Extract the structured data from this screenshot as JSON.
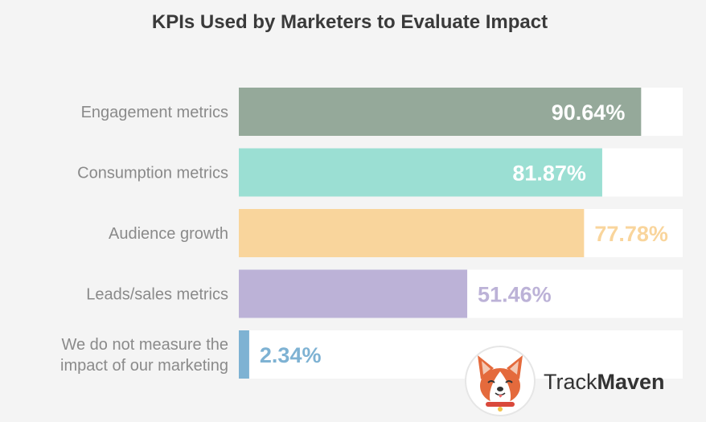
{
  "chart_data": {
    "type": "bar",
    "orientation": "horizontal",
    "title": "KPIs Used by Marketers to Evaluate Impact",
    "categories": [
      [
        "Engagement metrics"
      ],
      [
        "Consumption metrics"
      ],
      [
        "Audience growth"
      ],
      [
        "Leads/sales metrics"
      ],
      [
        "We do not measure the",
        "impact of our marketing"
      ]
    ],
    "values": [
      90.64,
      81.87,
      77.78,
      51.46,
      2.34
    ],
    "value_labels": [
      "90.64%",
      "81.87%",
      "77.78%",
      "51.46%",
      "2.34%"
    ],
    "colors": [
      "#95a99a",
      "#9bdfd3",
      "#f9d59c",
      "#bcb2d7",
      "#7eb2d3"
    ],
    "label_colors": [
      "#ffffff",
      "#ffffff",
      "#f9d59c",
      "#bcb2d7",
      "#7eb2d3"
    ],
    "xlim": [
      0,
      100
    ],
    "grid": false,
    "legend": "none"
  },
  "branding": {
    "logo_icon": "corgi-icon",
    "name_regular": "Track",
    "name_bold": "Maven"
  }
}
